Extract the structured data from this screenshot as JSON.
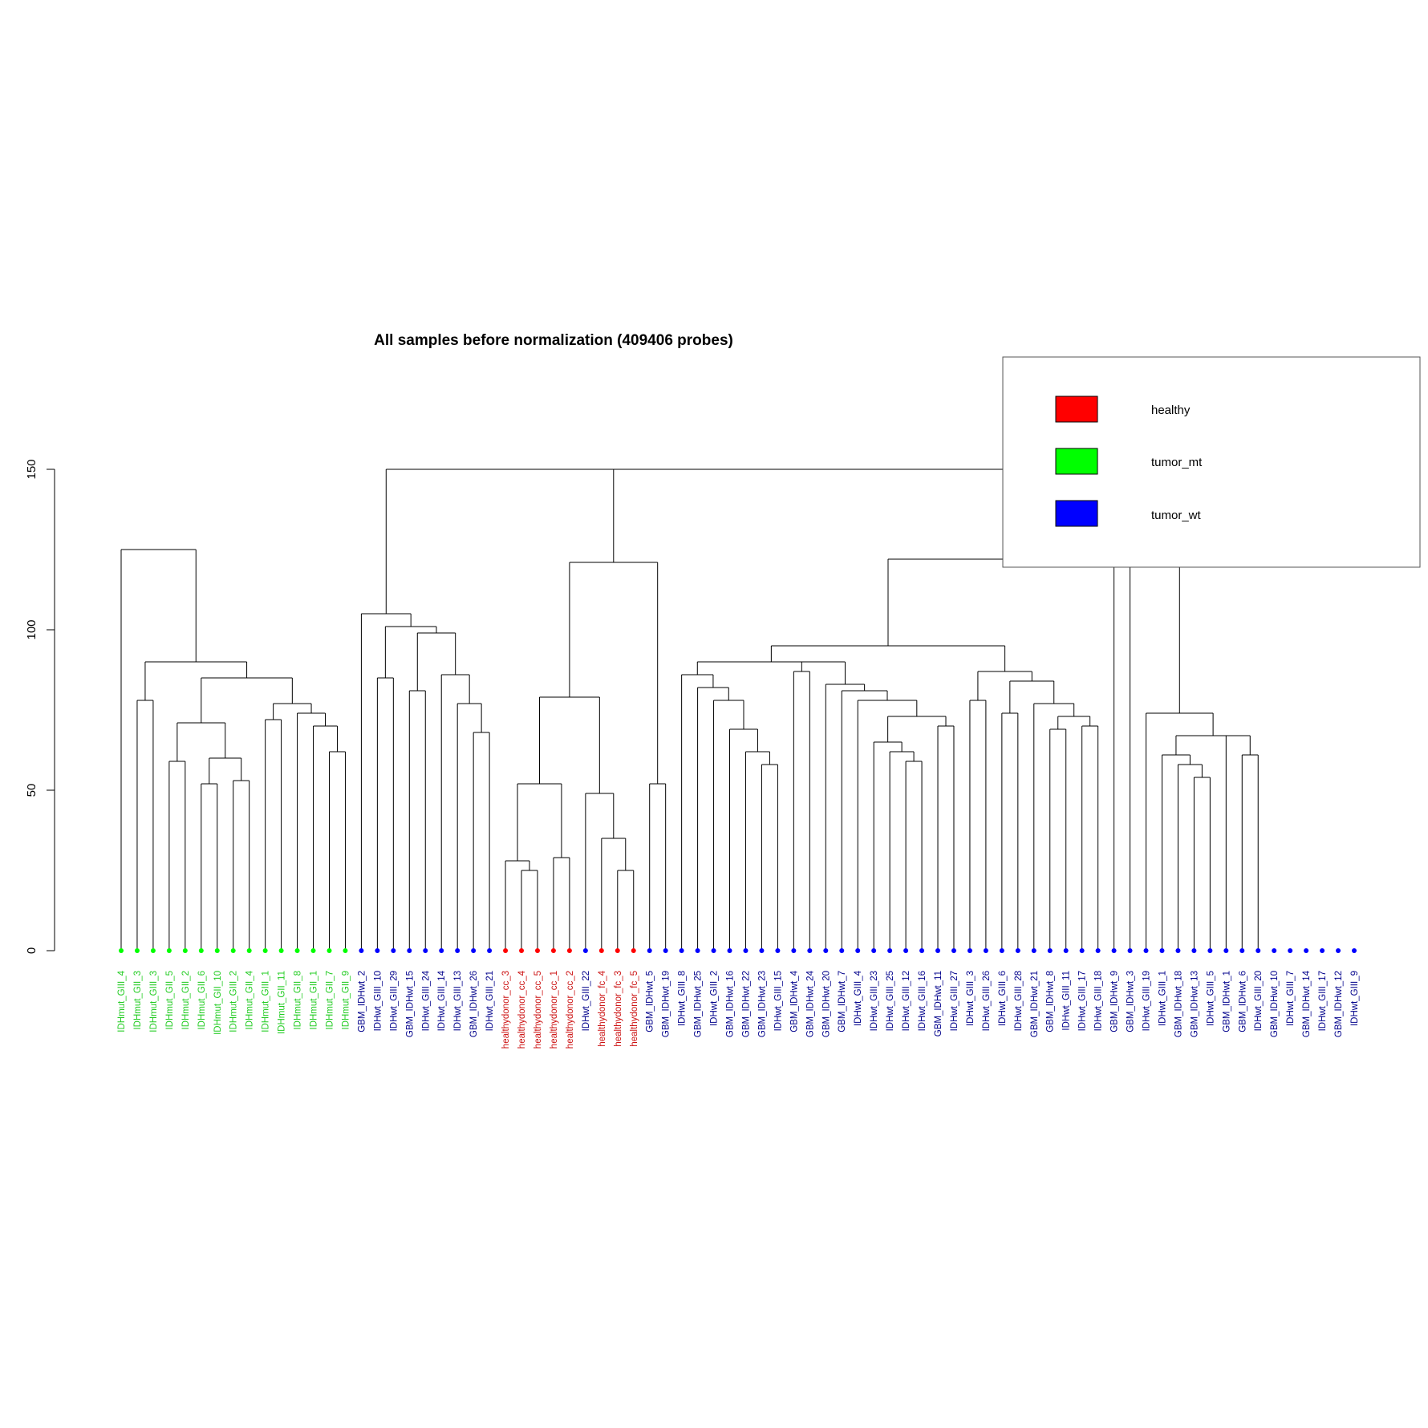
{
  "chart_data": {
    "type": "dendrogram",
    "title": "All samples before normalization (409406 probes)",
    "xlabel": "",
    "ylabel": "",
    "ylim": [
      0,
      180
    ],
    "yticks": [
      0,
      50,
      100,
      150
    ],
    "colors": {
      "healthy": "#ff0000",
      "tumor_mt": "#00ff00",
      "tumor_wt": "#0000ff",
      "tumor_wt_label": "#00008b",
      "tumor_mt_label": "#22cc22",
      "healthy_label": "#cc1111"
    },
    "legend": {
      "placement": "top-right",
      "entries": [
        {
          "label": "healthy",
          "color": "#ff0000"
        },
        {
          "label": "tumor_mt",
          "color": "#00ff00"
        },
        {
          "label": "tumor_wt",
          "color": "#0000ff"
        }
      ]
    },
    "leaves": [
      {
        "label": "IDHmut_GIII_4",
        "group": "tumor_mt"
      },
      {
        "label": "IDHmut_GII_3",
        "group": "tumor_mt"
      },
      {
        "label": "IDHmut_GIII_3",
        "group": "tumor_mt"
      },
      {
        "label": "IDHmut_GII_5",
        "group": "tumor_mt"
      },
      {
        "label": "IDHmut_GII_2",
        "group": "tumor_mt"
      },
      {
        "label": "IDHmut_GII_6",
        "group": "tumor_mt"
      },
      {
        "label": "IDHmut_GII_10",
        "group": "tumor_mt"
      },
      {
        "label": "IDHmut_GIII_2",
        "group": "tumor_mt"
      },
      {
        "label": "IDHmut_GII_4",
        "group": "tumor_mt"
      },
      {
        "label": "IDHmut_GIII_1",
        "group": "tumor_mt"
      },
      {
        "label": "IDHmut_GII_11",
        "group": "tumor_mt"
      },
      {
        "label": "IDHmut_GII_8",
        "group": "tumor_mt"
      },
      {
        "label": "IDHmut_GII_1",
        "group": "tumor_mt"
      },
      {
        "label": "IDHmut_GII_7",
        "group": "tumor_mt"
      },
      {
        "label": "IDHmut_GII_9",
        "group": "tumor_mt"
      },
      {
        "label": "GBM_IDHwt_2",
        "group": "tumor_wt"
      },
      {
        "label": "IDHwt_GIII_10",
        "group": "tumor_wt"
      },
      {
        "label": "IDHwt_GIII_29",
        "group": "tumor_wt"
      },
      {
        "label": "GBM_IDHwt_15",
        "group": "tumor_wt"
      },
      {
        "label": "IDHwt_GIII_24",
        "group": "tumor_wt"
      },
      {
        "label": "IDHwt_GIII_14",
        "group": "tumor_wt"
      },
      {
        "label": "IDHwt_GIII_13",
        "group": "tumor_wt"
      },
      {
        "label": "GBM_IDHwt_26",
        "group": "tumor_wt"
      },
      {
        "label": "IDHwt_GIII_21",
        "group": "tumor_wt"
      },
      {
        "label": "healthydonor_cc_3",
        "group": "healthy"
      },
      {
        "label": "healthydonor_cc_4",
        "group": "healthy"
      },
      {
        "label": "healthydonor_cc_5",
        "group": "healthy"
      },
      {
        "label": "healthydonor_cc_1",
        "group": "healthy"
      },
      {
        "label": "healthydonor_cc_2",
        "group": "healthy"
      },
      {
        "label": "IDHwt_GIII_22",
        "group": "tumor_wt"
      },
      {
        "label": "healthydonor_fc_4",
        "group": "healthy"
      },
      {
        "label": "healthydonor_fc_3",
        "group": "healthy"
      },
      {
        "label": "healthydonor_fc_5",
        "group": "healthy"
      },
      {
        "label": "GBM_IDHwt_5",
        "group": "tumor_wt"
      },
      {
        "label": "GBM_IDHwt_19",
        "group": "tumor_wt"
      },
      {
        "label": "IDHwt_GIII_8",
        "group": "tumor_wt"
      },
      {
        "label": "GBM_IDHwt_25",
        "group": "tumor_wt"
      },
      {
        "label": "IDHwt_GIII_2",
        "group": "tumor_wt"
      },
      {
        "label": "GBM_IDHwt_16",
        "group": "tumor_wt"
      },
      {
        "label": "GBM_IDHwt_22",
        "group": "tumor_wt"
      },
      {
        "label": "GBM_IDHwt_23",
        "group": "tumor_wt"
      },
      {
        "label": "IDHwt_GIII_15",
        "group": "tumor_wt"
      },
      {
        "label": "GBM_IDHwt_4",
        "group": "tumor_wt"
      },
      {
        "label": "GBM_IDHwt_24",
        "group": "tumor_wt"
      },
      {
        "label": "GBM_IDHwt_20",
        "group": "tumor_wt"
      },
      {
        "label": "GBM_IDHwt_7",
        "group": "tumor_wt"
      },
      {
        "label": "IDHwt_GIII_4",
        "group": "tumor_wt"
      },
      {
        "label": "IDHwt_GIII_23",
        "group": "tumor_wt"
      },
      {
        "label": "IDHwt_GIII_25",
        "group": "tumor_wt"
      },
      {
        "label": "IDHwt_GIII_12",
        "group": "tumor_wt"
      },
      {
        "label": "IDHwt_GIII_16",
        "group": "tumor_wt"
      },
      {
        "label": "GBM_IDHwt_11",
        "group": "tumor_wt"
      },
      {
        "label": "IDHwt_GIII_27",
        "group": "tumor_wt"
      },
      {
        "label": "IDHwt_GIII_3",
        "group": "tumor_wt"
      },
      {
        "label": "IDHwt_GIII_26",
        "group": "tumor_wt"
      },
      {
        "label": "IDHwt_GIII_6",
        "group": "tumor_wt"
      },
      {
        "label": "IDHwt_GIII_28",
        "group": "tumor_wt"
      },
      {
        "label": "GBM_IDHwt_21",
        "group": "tumor_wt"
      },
      {
        "label": "GBM_IDHwt_8",
        "group": "tumor_wt"
      },
      {
        "label": "IDHwt_GIII_11",
        "group": "tumor_wt"
      },
      {
        "label": "IDHwt_GIII_17",
        "group": "tumor_wt"
      },
      {
        "label": "IDHwt_GIII_18",
        "group": "tumor_wt"
      },
      {
        "label": "GBM_IDHwt_9",
        "group": "tumor_wt"
      },
      {
        "label": "GBM_IDHwt_3",
        "group": "tumor_wt"
      },
      {
        "label": "IDHwt_GIII_19",
        "group": "tumor_wt"
      },
      {
        "label": "IDHwt_GIII_1",
        "group": "tumor_wt"
      },
      {
        "label": "GBM_IDHwt_18",
        "group": "tumor_wt"
      },
      {
        "label": "GBM_IDHwt_13",
        "group": "tumor_wt"
      },
      {
        "label": "IDHwt_GIII_5",
        "group": "tumor_wt"
      },
      {
        "label": "GBM_IDHwt_1",
        "group": "tumor_wt"
      },
      {
        "label": "GBM_IDHwt_6",
        "group": "tumor_wt"
      },
      {
        "label": "IDHwt_GIII_20",
        "group": "tumor_wt"
      },
      {
        "label": "GBM_IDHwt_10",
        "group": "tumor_wt"
      },
      {
        "label": "IDHwt_GIII_7",
        "group": "tumor_wt"
      },
      {
        "label": "GBM_IDHwt_14",
        "group": "tumor_wt"
      },
      {
        "label": "IDHwt_GIII_17",
        "group": "tumor_wt"
      },
      {
        "label": "GBM_IDHwt_12",
        "group": "tumor_wt"
      },
      {
        "label": "IDHwt_GIII_9",
        "group": "tumor_wt"
      }
    ],
    "merges": [
      [
        0,
        14,
        125
      ],
      [
        1,
        2,
        78
      ],
      [
        3,
        4,
        59
      ],
      [
        5,
        6,
        52
      ],
      [
        7,
        8,
        53
      ],
      [
        5,
        8,
        60
      ],
      [
        3,
        8,
        71
      ],
      [
        9,
        10,
        72
      ],
      [
        13,
        14,
        62
      ],
      [
        12,
        14,
        70
      ],
      [
        11,
        14,
        74
      ],
      [
        9,
        14,
        77
      ],
      [
        3,
        14,
        85
      ],
      [
        1,
        14,
        90
      ],
      [
        15,
        68,
        150
      ],
      [
        15,
        23,
        105
      ],
      [
        16,
        17,
        85
      ],
      [
        16,
        23,
        101
      ],
      [
        18,
        19,
        81
      ],
      [
        18,
        23,
        99
      ],
      [
        20,
        23,
        86
      ],
      [
        21,
        23,
        77
      ],
      [
        22,
        23,
        68
      ],
      [
        24,
        25,
        28
      ],
      [
        25,
        26,
        25
      ],
      [
        24,
        26,
        32
      ],
      [
        27,
        28,
        29
      ],
      [
        24,
        28,
        52
      ],
      [
        29,
        32,
        49
      ],
      [
        30,
        32,
        35
      ],
      [
        31,
        32,
        25
      ],
      [
        24,
        32,
        79
      ],
      [
        33,
        34,
        52
      ],
      [
        24,
        34,
        121
      ],
      [
        35,
        68,
        122
      ],
      [
        35,
        78,
        109
      ],
      [
        35,
        61,
        97
      ],
      [
        35,
        44,
        90
      ],
      [
        35,
        41,
        86
      ],
      [
        36,
        41,
        82
      ],
      [
        37,
        41,
        78
      ],
      [
        38,
        41,
        69
      ],
      [
        39,
        41,
        62
      ],
      [
        40,
        41,
        58
      ],
      [
        42,
        43,
        87
      ],
      [
        44,
        53,
        97
      ],
      [
        44,
        61,
        95
      ],
      [
        44,
        52,
        83
      ],
      [
        45,
        52,
        81
      ],
      [
        46,
        52,
        78
      ],
      [
        47,
        48,
        65
      ],
      [
        48,
        49,
        62
      ],
      [
        49,
        50,
        59
      ],
      [
        48,
        50,
        73
      ],
      [
        51,
        52,
        70
      ],
      [
        47,
        52,
        73
      ],
      [
        53,
        61,
        87
      ],
      [
        53,
        54,
        78
      ],
      [
        55,
        61,
        84
      ],
      [
        55,
        56,
        74
      ],
      [
        57,
        61,
        77
      ],
      [
        58,
        61,
        73
      ],
      [
        58,
        59,
        69
      ],
      [
        60,
        61,
        70
      ],
      [
        62,
        78,
        103
      ],
      [
        63,
        78,
        87
      ],
      [
        63,
        78,
        79
      ],
      [
        64,
        71,
        74
      ],
      [
        65,
        71,
        67
      ],
      [
        65,
        66,
        61
      ],
      [
        66,
        67,
        58
      ],
      [
        67,
        68,
        54
      ],
      [
        69,
        71,
        67
      ],
      [
        70,
        71,
        61
      ],
      [
        71,
        78,
        79
      ],
      [
        72,
        78,
        75
      ],
      [
        73,
        78,
        74
      ],
      [
        74,
        78,
        70
      ],
      [
        75,
        78,
        68
      ],
      [
        76,
        78,
        65
      ],
      [
        77,
        78,
        61
      ]
    ]
  }
}
